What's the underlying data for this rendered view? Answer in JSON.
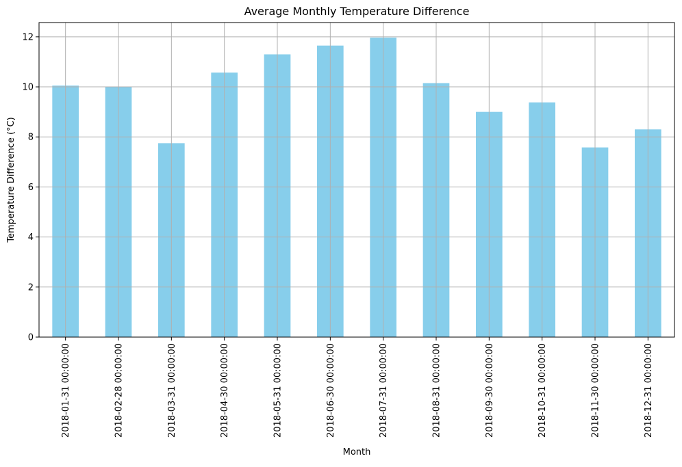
{
  "chart_data": {
    "type": "bar",
    "title": "Average Monthly Temperature Difference",
    "xlabel": "Month",
    "ylabel": "Temperature Difference (°C)",
    "categories": [
      "2018-01-31 00:00:00",
      "2018-02-28 00:00:00",
      "2018-03-31 00:00:00",
      "2018-04-30 00:00:00",
      "2018-05-31 00:00:00",
      "2018-06-30 00:00:00",
      "2018-07-31 00:00:00",
      "2018-08-31 00:00:00",
      "2018-09-30 00:00:00",
      "2018-10-31 00:00:00",
      "2018-11-30 00:00:00",
      "2018-12-31 00:00:00"
    ],
    "values": [
      10.05,
      10.0,
      7.75,
      10.57,
      11.3,
      11.65,
      11.97,
      10.15,
      9.0,
      9.38,
      7.58,
      8.3
    ],
    "ylim": [
      0,
      12.57
    ],
    "yticks": [
      0,
      2,
      4,
      6,
      8,
      10,
      12
    ],
    "grid": true,
    "bar_color": "#87CEEB",
    "grid_color": "#b0b0b0"
  }
}
